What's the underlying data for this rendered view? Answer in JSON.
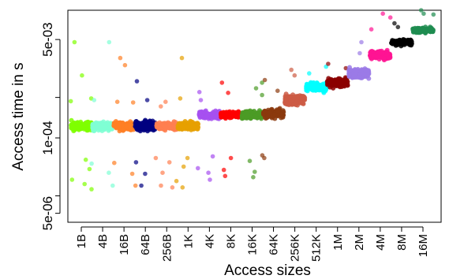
{
  "chart_data": {
    "type": "scatter",
    "title": "",
    "xlabel": "Access sizes",
    "ylabel": "Access time in s",
    "y_scale": "log",
    "ylim": [
      3.5e-06,
      0.016
    ],
    "grid": false,
    "legend": "none",
    "categories": [
      "1B",
      "4B",
      "16B",
      "64B",
      "256B",
      "1K",
      "4K",
      "8K",
      "16K",
      "64K",
      "256K",
      "512K",
      "1M",
      "2M",
      "4M",
      "8M",
      "16M"
    ],
    "y_ticks": [
      {
        "value": 5e-06,
        "label": "5e-06"
      },
      {
        "value": 1e-05,
        "label": ""
      },
      {
        "value": 0.0001,
        "label": "1e-04"
      },
      {
        "value": 0.0005,
        "label": ""
      },
      {
        "value": 0.005,
        "label": "5e-03"
      }
    ],
    "series": [
      {
        "category": "1B",
        "color": "#7fff00",
        "median": 0.00016,
        "spread": 4.5e-05,
        "outliers": [
          0.0045,
          0.0012,
          0.00048,
          0.00043,
          4.2e-05,
          2.9e-05,
          1.9e-05,
          1.6e-05,
          1.3e-05
        ]
      },
      {
        "category": "4B",
        "color": "#7fffd4",
        "median": 0.00016,
        "spread": 4e-05,
        "outliers": [
          0.0045,
          0.00045,
          3.6e-05,
          2.5e-05,
          1.5e-05
        ]
      },
      {
        "category": "16B",
        "color": "#ff7f24",
        "median": 0.00016,
        "spread": 4e-05,
        "outliers": [
          0.0024,
          0.0018,
          0.00042,
          0.00041,
          3.7e-05,
          2.4e-05,
          1.5e-05
        ]
      },
      {
        "category": "64B",
        "color": "#000080",
        "median": 0.00016,
        "spread": 5e-05,
        "outliers": [
          0.00095,
          0.00045,
          3.8e-05,
          2.4e-05,
          1.5e-05
        ]
      },
      {
        "category": "256B",
        "color": "#ff7f50",
        "median": 0.00016,
        "spread": 4e-05,
        "outliers": [
          0.00042,
          0.00035,
          4.5e-05,
          3.8e-05,
          2.5e-05,
          1.5e-05,
          1.4e-05
        ]
      },
      {
        "category": "1K",
        "color": "#e6a000",
        "median": 0.00016,
        "spread": 4e-05,
        "outliers": [
          0.0024,
          0.00048,
          4.5e-05,
          3.2e-05,
          1.8e-05,
          1.4e-05
        ]
      },
      {
        "category": "4K",
        "color": "#a650f0",
        "median": 0.00025,
        "spread": 5e-05,
        "outliers": [
          0.00062,
          0.00045,
          4.8e-05,
          3e-05,
          2.5e-05,
          1.9e-05
        ]
      },
      {
        "category": "8K",
        "color": "#ff0000",
        "median": 0.00025,
        "spread": 5e-05,
        "outliers": [
          0.0009,
          0.0006,
          4.5e-05,
          2.8e-05,
          2.2e-05
        ]
      },
      {
        "category": "16K",
        "color": "#4b9b26",
        "median": 0.00025,
        "spread": 6e-05,
        "outliers": [
          0.0009,
          0.00072,
          0.00055,
          4e-05,
          2.6e-05,
          2.1e-05
        ]
      },
      {
        "category": "64K",
        "color": "#8b3a0e",
        "median": 0.00026,
        "spread": 7e-05,
        "outliers": [
          0.001,
          0.00065,
          5e-05,
          4.5e-05
        ]
      },
      {
        "category": "256K",
        "color": "#cd5c45",
        "median": 0.00045,
        "spread": 0.00015,
        "outliers": [
          0.0015,
          0.0012
        ]
      },
      {
        "category": "512K",
        "color": "#00ffff",
        "median": 0.00075,
        "spread": 0.0002,
        "outliers": [
          0.0017,
          0.0013
        ]
      },
      {
        "category": "1M",
        "color": "#8b0000",
        "median": 0.0009,
        "spread": 0.00025,
        "outliers": [
          0.0019,
          0.0016
        ]
      },
      {
        "category": "2M",
        "color": "#9b7ae6",
        "median": 0.0013,
        "spread": 0.0004,
        "outliers": [
          0.0045,
          0.0029
        ]
      },
      {
        "category": "4M",
        "color": "#ff1493",
        "median": 0.0027,
        "spread": 0.0007,
        "outliers": [
          0.014,
          0.012,
          0.0075
        ]
      },
      {
        "category": "8M",
        "color": "#000000",
        "median": 0.0045,
        "spread": 0.0008,
        "outliers": [
          0.0095,
          0.0082
        ]
      },
      {
        "category": "16M",
        "color": "#1e8c50",
        "median": 0.0072,
        "spread": 0.0012,
        "outliers": [
          0.016,
          0.014,
          0.0135
        ]
      }
    ]
  }
}
